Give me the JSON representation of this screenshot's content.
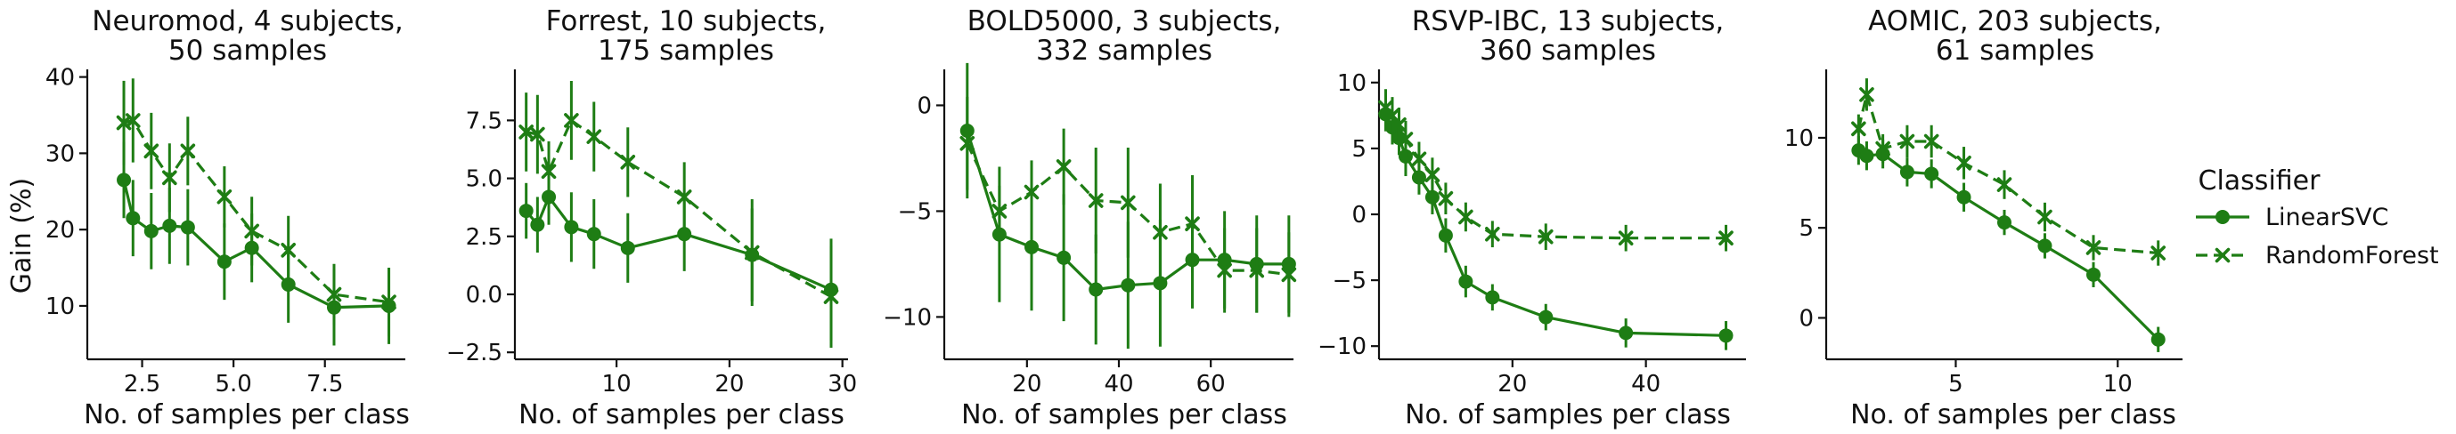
{
  "colors": {
    "series": "#1e7d14",
    "text": "#111111"
  },
  "y_label": "Gain (%)",
  "legend": {
    "title": "Classifier",
    "entries": [
      {
        "name": "LinearSVC",
        "marker": "circle",
        "dash": "solid"
      },
      {
        "name": "RandomForest",
        "marker": "x",
        "dash": "dashed"
      }
    ]
  },
  "chart_data": [
    {
      "type": "line",
      "title_line1": "Neuromod, 4 subjects,",
      "title_line2": "50 samples",
      "xlabel": "No. of samples per class",
      "ylabel": "Gain (%)",
      "xlim": [
        1.0,
        9.7
      ],
      "ylim": [
        3,
        41
      ],
      "xticks": [
        2.5,
        5.0,
        7.5
      ],
      "yticks": [
        10,
        20,
        30,
        40
      ],
      "series": [
        {
          "name": "LinearSVC",
          "x": [
            2,
            2.25,
            2.75,
            3.25,
            3.75,
            4.75,
            5.5,
            6.5,
            7.75,
            9.25
          ],
          "y": [
            26.5,
            21.5,
            19.8,
            20.5,
            20.3,
            15.8,
            17.6,
            12.8,
            9.8,
            10.0
          ],
          "err": [
            5,
            5,
            5,
            5,
            5,
            5,
            4.5,
            5,
            5,
            5
          ]
        },
        {
          "name": "RandomForest",
          "x": [
            2,
            2.25,
            2.75,
            3.25,
            3.75,
            4.75,
            5.5,
            6.5,
            7.75,
            9.25
          ],
          "y": [
            34,
            34.3,
            30.3,
            26.8,
            30.3,
            24.3,
            19.8,
            17.3,
            11.5,
            10.5
          ],
          "err": [
            5.5,
            5.5,
            5,
            4.5,
            4.5,
            4,
            4.5,
            4.5,
            4,
            4.5
          ]
        }
      ]
    },
    {
      "type": "line",
      "title_line1": "Forrest, 10 subjects,",
      "title_line2": "175 samples",
      "xlabel": "No. of samples per class",
      "ylabel": "",
      "xlim": [
        1.0,
        30.5
      ],
      "ylim": [
        -2.8,
        9.7
      ],
      "xticks": [
        10,
        20,
        30
      ],
      "yticks": [
        -2.5,
        0.0,
        2.5,
        5.0,
        7.5
      ],
      "series": [
        {
          "name": "LinearSVC",
          "x": [
            2,
            3,
            4,
            6,
            8,
            11,
            16,
            22,
            29
          ],
          "y": [
            3.6,
            3.0,
            4.2,
            2.9,
            2.6,
            2.0,
            2.6,
            1.7,
            0.2
          ],
          "err": [
            1.2,
            1.2,
            1.2,
            1.5,
            1.5,
            1.5,
            1.6,
            2.0,
            2.2
          ]
        },
        {
          "name": "RandomForest",
          "x": [
            2,
            3,
            4,
            6,
            8,
            11,
            16,
            22,
            29
          ],
          "y": [
            7.0,
            6.9,
            5.3,
            7.5,
            6.8,
            5.7,
            4.2,
            1.8,
            -0.1
          ],
          "err": [
            1.7,
            1.7,
            1.3,
            1.7,
            1.5,
            1.5,
            1.5,
            2.3,
            2.2
          ]
        }
      ]
    },
    {
      "type": "line",
      "title_line1": "BOLD5000, 3 subjects,",
      "title_line2": "332 samples",
      "xlabel": "No. of samples per class",
      "ylabel": "",
      "xlim": [
        2,
        78
      ],
      "ylim": [
        -12,
        1.7
      ],
      "xticks": [
        20,
        40,
        60
      ],
      "yticks": [
        0,
        -5,
        -10
      ],
      "series": [
        {
          "name": "LinearSVC",
          "x": [
            7,
            14,
            21,
            28,
            35,
            42,
            49,
            56,
            63,
            70,
            77
          ],
          "y": [
            -1.2,
            -6.1,
            -6.7,
            -7.2,
            -8.7,
            -8.5,
            -8.4,
            -7.3,
            -7.3,
            -7.5,
            -7.5
          ],
          "err": [
            3.2,
            3.2,
            3,
            3,
            2.6,
            3,
            3,
            2.3,
            2.3,
            2.3,
            2.3
          ]
        },
        {
          "name": "RandomForest",
          "x": [
            7,
            14,
            21,
            28,
            35,
            42,
            49,
            56,
            63,
            70,
            77
          ],
          "y": [
            -1.8,
            -5.0,
            -4.1,
            -2.9,
            -4.5,
            -4.6,
            -6.0,
            -5.6,
            -7.8,
            -7.8,
            -8.0
          ],
          "err": [
            2.2,
            1.2,
            1.5,
            1.8,
            2.5,
            2.6,
            2.3,
            2.3,
            2,
            2,
            2
          ]
        }
      ]
    },
    {
      "type": "line",
      "title_line1": "RSVP-IBC, 13 subjects,",
      "title_line2": "360 samples",
      "xlabel": "No. of samples per class",
      "ylabel": "",
      "xlim": [
        0,
        55
      ],
      "ylim": [
        -11,
        11
      ],
      "xticks": [
        20,
        40
      ],
      "yticks": [
        -10,
        -5,
        0,
        5,
        10
      ],
      "series": [
        {
          "name": "LinearSVC",
          "x": [
            1,
            2,
            3,
            4,
            6,
            8,
            10,
            13,
            17,
            25,
            37,
            52
          ],
          "y": [
            7.6,
            6.6,
            5.8,
            4.4,
            2.8,
            1.3,
            -1.6,
            -5.1,
            -6.3,
            -7.8,
            -9.0,
            -9.2
          ],
          "err": [
            1.3,
            1.3,
            1.3,
            1.5,
            1.3,
            1.3,
            1.3,
            1.2,
            1.0,
            1.0,
            1.1,
            1.1
          ]
        },
        {
          "name": "RandomForest",
          "x": [
            1,
            2,
            3,
            4,
            6,
            8,
            10,
            13,
            17,
            25,
            37,
            52
          ],
          "y": [
            8.1,
            7.5,
            6.8,
            5.7,
            4.2,
            3.0,
            1.2,
            -0.2,
            -1.5,
            -1.7,
            -1.8,
            -1.8
          ],
          "err": [
            1.4,
            1.4,
            1.3,
            1.4,
            1.3,
            1.3,
            1.2,
            1.1,
            1.0,
            1.0,
            1.0,
            1.0
          ]
        }
      ]
    },
    {
      "type": "line",
      "title_line1": "AOMIC, 203 subjects,",
      "title_line2": "61 samples",
      "xlabel": "No. of samples per class",
      "ylabel": "",
      "xlim": [
        1.0,
        12.0
      ],
      "ylim": [
        -2.3,
        13.8
      ],
      "xticks": [
        5,
        10
      ],
      "yticks": [
        0,
        5,
        10
      ],
      "series": [
        {
          "name": "LinearSVC",
          "x": [
            2,
            2.25,
            2.75,
            3.5,
            4.25,
            5.25,
            6.5,
            7.75,
            9.25,
            11.25
          ],
          "y": [
            9.3,
            9.0,
            9.1,
            8.1,
            8.0,
            6.7,
            5.3,
            4.0,
            2.4,
            -1.2
          ],
          "err": [
            0.8,
            0.8,
            0.8,
            0.8,
            0.8,
            0.8,
            0.7,
            0.7,
            0.7,
            0.7
          ]
        },
        {
          "name": "RandomForest",
          "x": [
            2,
            2.25,
            2.75,
            3.5,
            4.25,
            5.25,
            6.5,
            7.75,
            9.25,
            11.25
          ],
          "y": [
            10.5,
            12.4,
            9.4,
            9.8,
            9.8,
            8.6,
            7.4,
            5.6,
            3.9,
            3.6
          ],
          "err": [
            0.8,
            0.9,
            0.8,
            0.9,
            0.9,
            0.9,
            0.8,
            0.8,
            0.7,
            0.7
          ]
        }
      ]
    }
  ]
}
